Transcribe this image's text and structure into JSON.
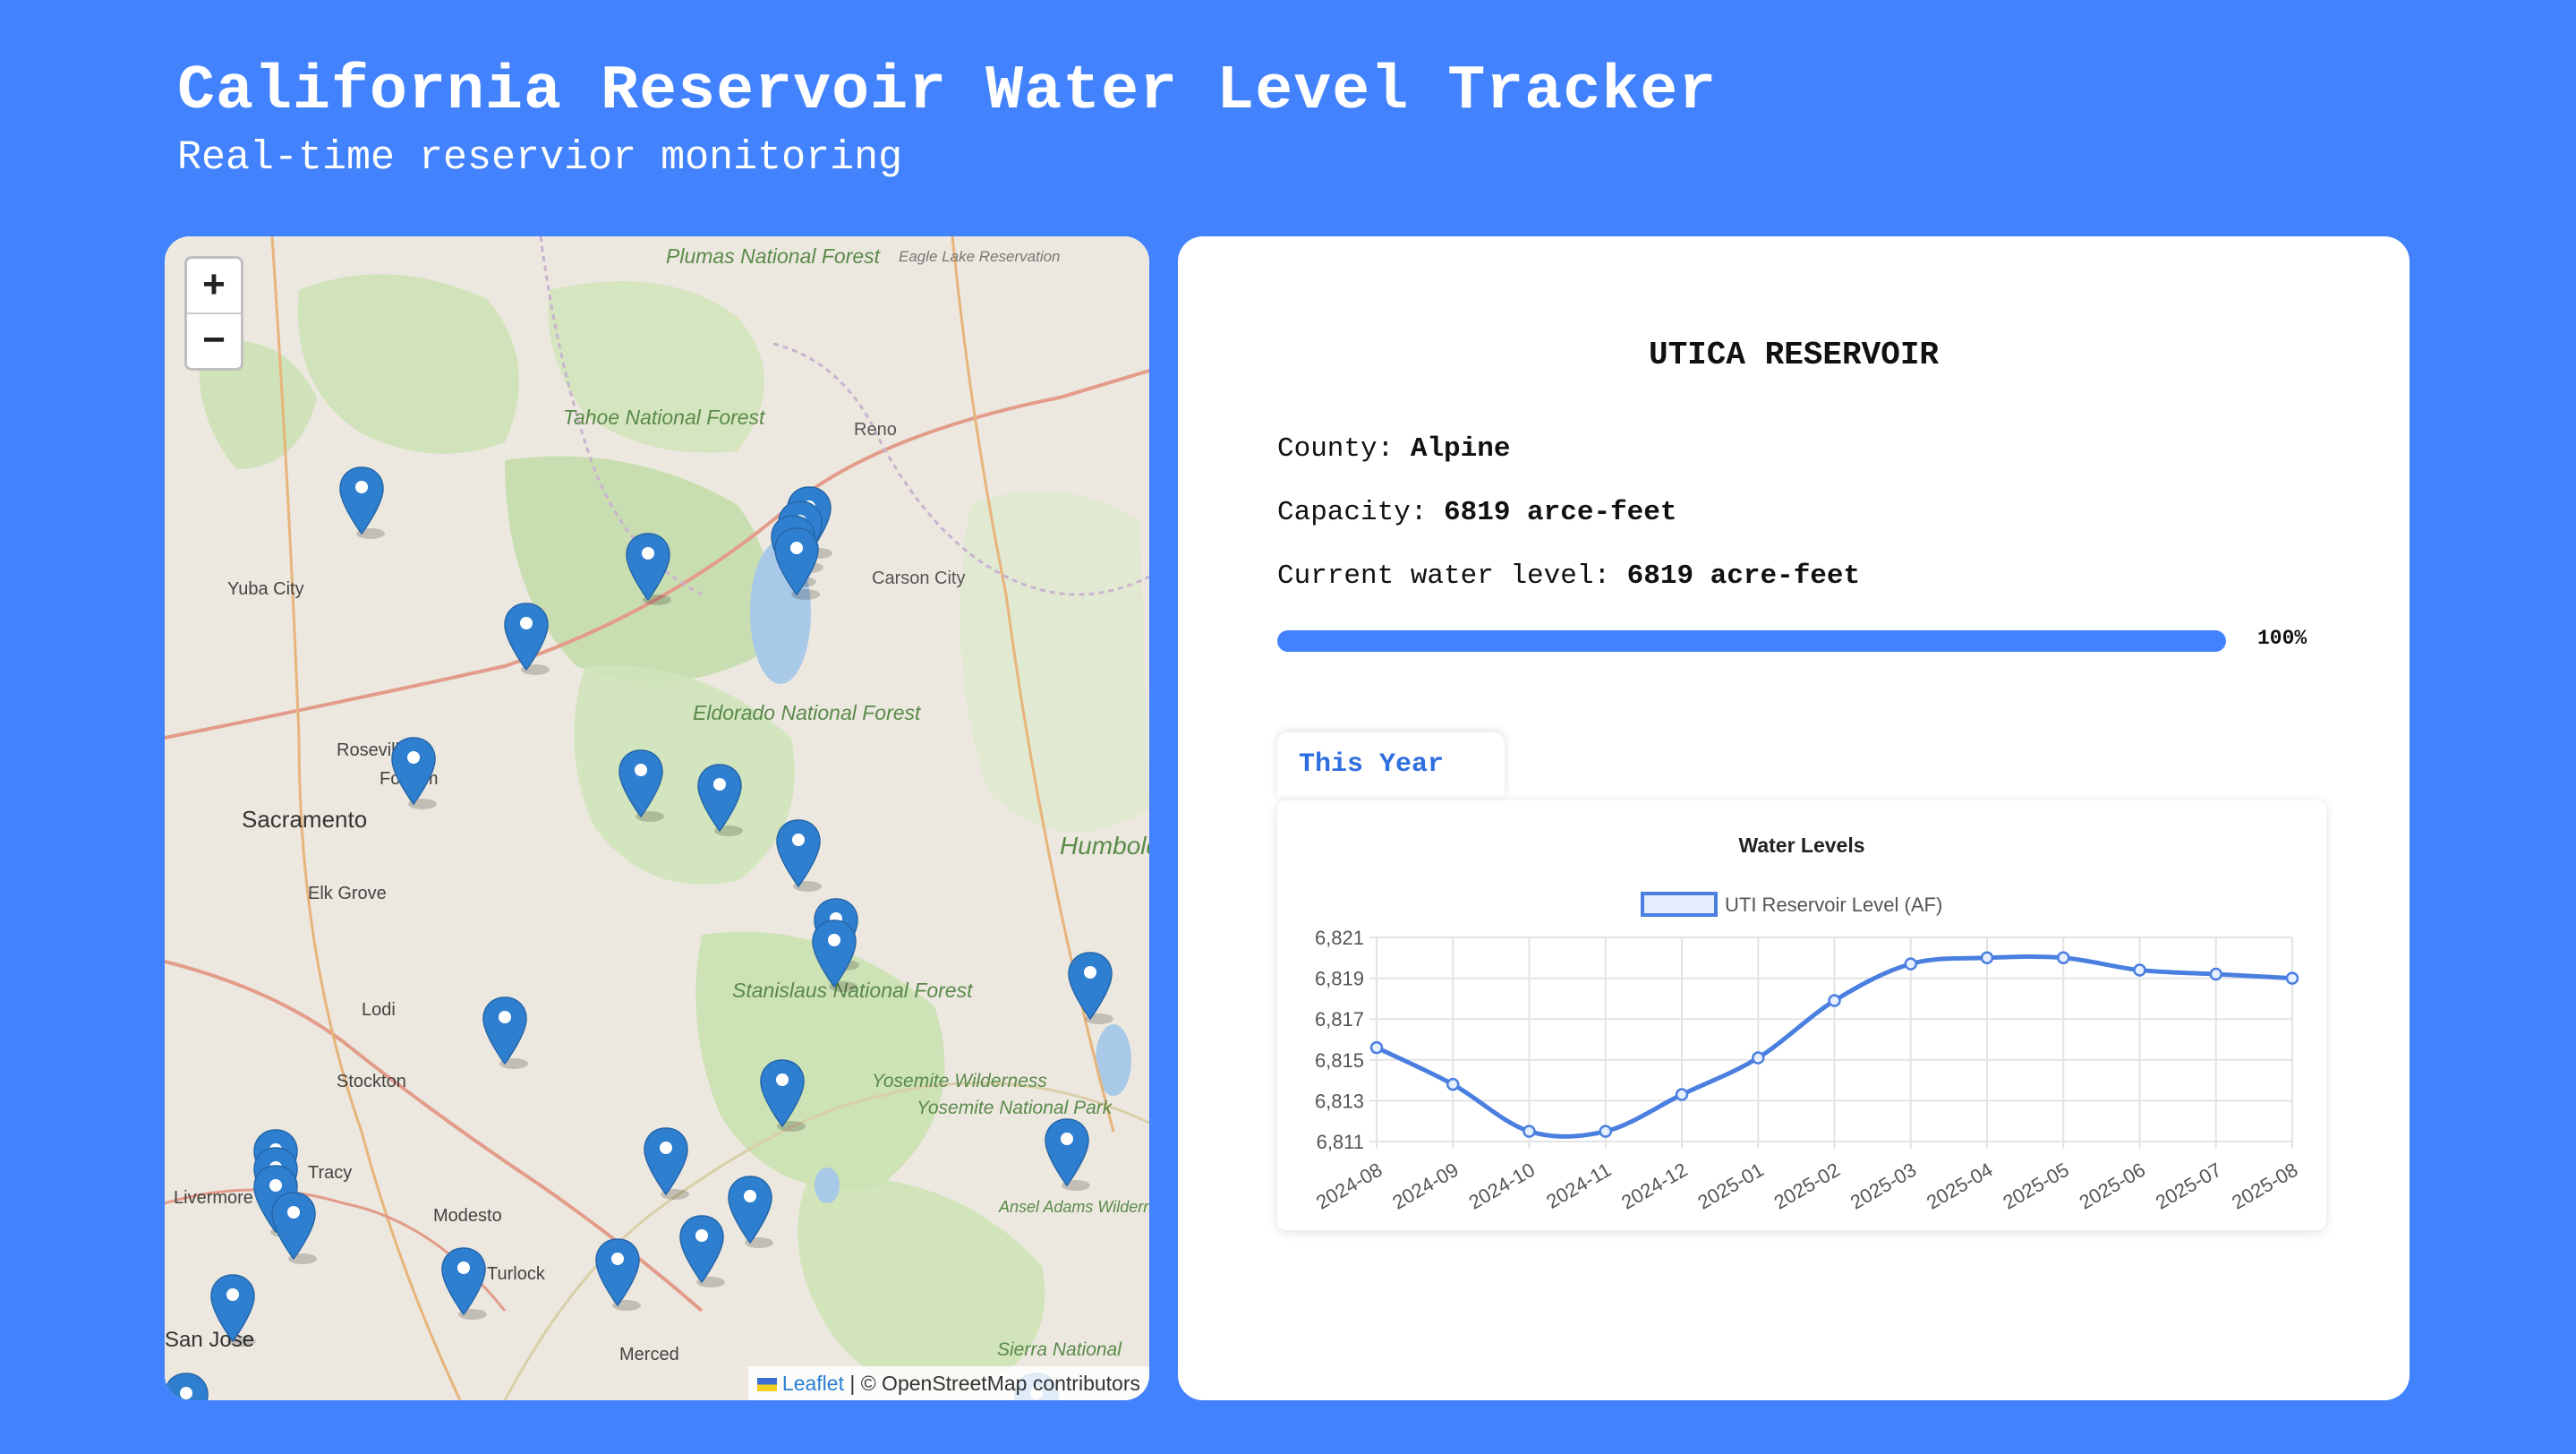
{
  "header": {
    "title": "California Reservoir Water Level Tracker",
    "subtitle": "Real-time reservior monitoring"
  },
  "map": {
    "zoom_in": "+",
    "zoom_out": "−",
    "attribution_link": "Leaflet",
    "attribution_text": "| © OpenStreetMap contributors",
    "place_labels": [
      "Plumas National Forest",
      "Tahoe National Forest",
      "Reno",
      "Yuba City",
      "Carson City",
      "Roseville",
      "Folsom",
      "Sacramento",
      "Eldorado National Forest",
      "Elk Grove",
      "Humboldt-Toiyabe National Forest",
      "Lodi",
      "Stanislaus National Forest",
      "Stockton",
      "Yosemite Wilderness",
      "Yosemite National Park",
      "Tracy",
      "Livermore",
      "Modesto",
      "Ansel Adams Wilderness",
      "Turlock",
      "Merced",
      "San Jose",
      "Sierra National",
      "Eagle Lake Reservation"
    ],
    "marker_count": 29,
    "marker_color": "#2f7fd0"
  },
  "reservoir": {
    "name": "UTICA RESERVOIR",
    "county_label": "County:",
    "county": "Alpine",
    "capacity_label": "Capacity:",
    "capacity": "6819 arce-feet",
    "level_label": "Current water level:",
    "level": "6819 acre-feet",
    "percent_full": 100,
    "percent_text": "100%"
  },
  "tabs": {
    "this_year": "This Year"
  },
  "chart_data": {
    "type": "line",
    "title": "Water Levels",
    "legend": "top",
    "grid": true,
    "series": [
      {
        "name": "UTI Reservoir Level (AF)",
        "color": "#4a7fe0",
        "values": [
          6815.6,
          6813.8,
          6811.5,
          6811.5,
          6813.3,
          6815.1,
          6817.9,
          6819.7,
          6820.0,
          6820.0,
          6819.4,
          6819.2,
          6819.0
        ]
      }
    ],
    "x": [
      "2024-08",
      "2024-09",
      "2024-10",
      "2024-11",
      "2024-12",
      "2025-01",
      "2025-02",
      "2025-03",
      "2025-04",
      "2025-05",
      "2025-06",
      "2025-07",
      "2025-08"
    ],
    "y_ticks": [
      "6,821",
      "6,819",
      "6,817",
      "6,815",
      "6,813",
      "6,811"
    ],
    "ylim": [
      6811,
      6821
    ]
  }
}
